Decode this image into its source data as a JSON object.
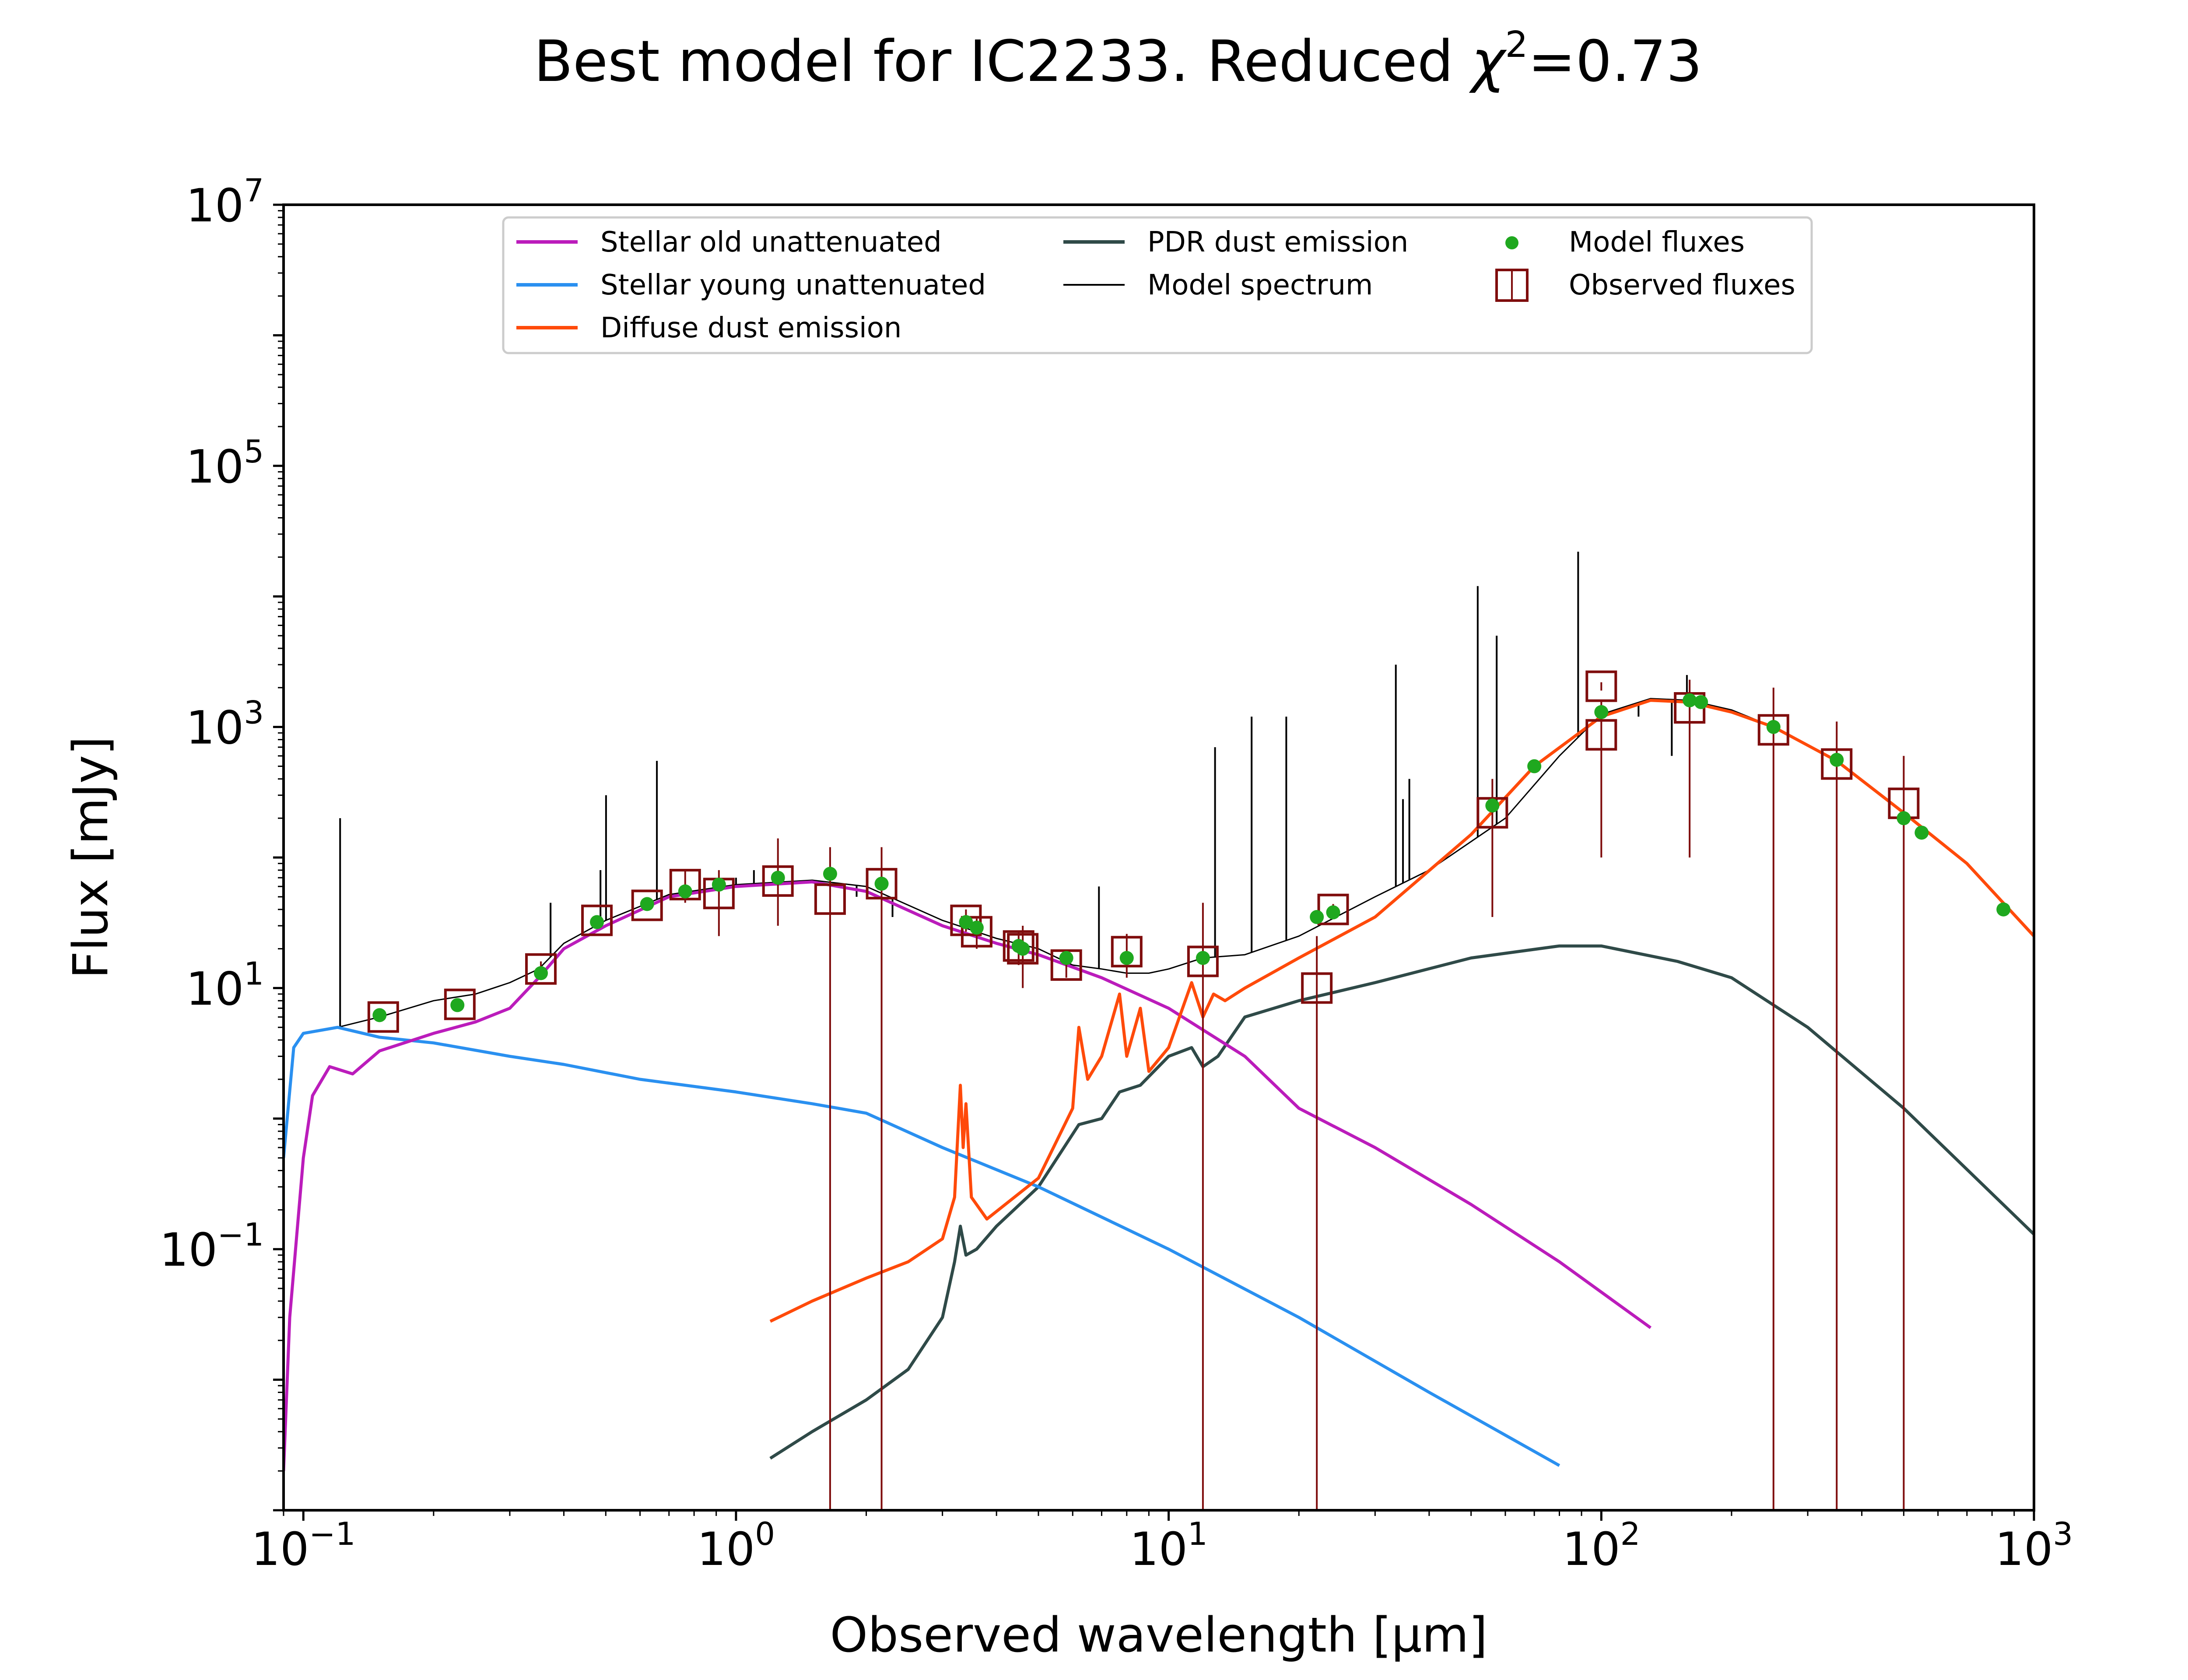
{
  "title": "Best model for IC2233. Reduced χ²=0.73",
  "title_parts": {
    "prefix": "Best model for IC2233. Reduced ",
    "chi": "χ",
    "sup": "2",
    "suffix": "=0.73"
  },
  "colors": {
    "stellar_old": "#bb1cbb",
    "stellar_young": "#2a90f0",
    "diffuse_dust": "#ff4a0a",
    "pdr_dust": "#2f4a48",
    "model_spectrum": "#000000",
    "model_fluxes": "#1fa81f",
    "observed": "#7f0d0d"
  },
  "chart_data": {
    "type": "line",
    "title": "Best model for IC2233. Reduced χ²=0.73",
    "xlabel": "Observed wavelength [μm]",
    "ylabel": "Flux [mJy]",
    "xscale": "log",
    "yscale": "log",
    "xlim": [
      0.09,
      1000
    ],
    "ylim": [
      0.001,
      10000000
    ],
    "xticks": [
      {
        "value": 0.1,
        "base": "10",
        "exp": "−1"
      },
      {
        "value": 1,
        "base": "10",
        "exp": "0"
      },
      {
        "value": 10,
        "base": "10",
        "exp": "1"
      },
      {
        "value": 100,
        "base": "10",
        "exp": "2"
      },
      {
        "value": 1000,
        "base": "10",
        "exp": "3"
      }
    ],
    "yticks": [
      {
        "value": 0.1,
        "base": "10",
        "exp": "−1"
      },
      {
        "value": 10,
        "base": "10",
        "exp": "1"
      },
      {
        "value": 1000,
        "base": "10",
        "exp": "3"
      },
      {
        "value": 100000,
        "base": "10",
        "exp": "5"
      },
      {
        "value": 10000000,
        "base": "10",
        "exp": "7"
      }
    ],
    "legend_position": "top-center",
    "series": [
      {
        "name": "Stellar old unattenuated",
        "key": "stellar_old",
        "kind": "line",
        "points": [
          [
            0.09,
            0.002
          ],
          [
            0.093,
            0.03
          ],
          [
            0.1,
            0.5
          ],
          [
            0.105,
            1.5
          ],
          [
            0.115,
            2.5
          ],
          [
            0.13,
            2.2
          ],
          [
            0.15,
            3.3
          ],
          [
            0.2,
            4.5
          ],
          [
            0.25,
            5.5
          ],
          [
            0.3,
            7
          ],
          [
            0.35,
            12
          ],
          [
            0.4,
            20
          ],
          [
            0.5,
            30
          ],
          [
            0.7,
            50
          ],
          [
            1.0,
            60
          ],
          [
            1.5,
            65
          ],
          [
            2.0,
            55
          ],
          [
            3.0,
            30
          ],
          [
            4.0,
            22
          ],
          [
            5.0,
            18
          ],
          [
            7.0,
            12
          ],
          [
            10.0,
            7
          ],
          [
            15.0,
            3
          ],
          [
            20.0,
            1.2
          ],
          [
            30.0,
            0.6
          ],
          [
            50.0,
            0.22
          ],
          [
            80.0,
            0.08
          ],
          [
            130.0,
            0.025
          ]
        ]
      },
      {
        "name": "Stellar young unattenuated",
        "key": "stellar_young",
        "kind": "line",
        "points": [
          [
            0.09,
            0.5
          ],
          [
            0.095,
            3.5
          ],
          [
            0.1,
            4.5
          ],
          [
            0.12,
            5
          ],
          [
            0.15,
            4.2
          ],
          [
            0.2,
            3.8
          ],
          [
            0.3,
            3.0
          ],
          [
            0.4,
            2.6
          ],
          [
            0.6,
            2.0
          ],
          [
            1.0,
            1.6
          ],
          [
            1.5,
            1.3
          ],
          [
            2.0,
            1.1
          ],
          [
            3.0,
            0.6
          ],
          [
            5.0,
            0.3
          ],
          [
            10.0,
            0.1
          ],
          [
            20.0,
            0.03
          ],
          [
            40.0,
            0.008
          ],
          [
            80.0,
            0.0022
          ]
        ]
      },
      {
        "name": "Diffuse dust emission",
        "key": "diffuse_dust",
        "kind": "line",
        "points": [
          [
            1.2,
            0.028
          ],
          [
            1.5,
            0.04
          ],
          [
            2.0,
            0.06
          ],
          [
            2.5,
            0.08
          ],
          [
            3.0,
            0.12
          ],
          [
            3.2,
            0.25
          ],
          [
            3.3,
            1.8
          ],
          [
            3.35,
            0.6
          ],
          [
            3.4,
            1.3
          ],
          [
            3.5,
            0.25
          ],
          [
            3.8,
            0.17
          ],
          [
            5.0,
            0.35
          ],
          [
            6.0,
            1.2
          ],
          [
            6.2,
            5
          ],
          [
            6.5,
            2.0
          ],
          [
            7.0,
            3
          ],
          [
            7.7,
            9
          ],
          [
            8.0,
            3
          ],
          [
            8.6,
            7
          ],
          [
            9.0,
            2.3
          ],
          [
            10.0,
            3.5
          ],
          [
            11.3,
            11
          ],
          [
            12.0,
            6
          ],
          [
            12.7,
            9
          ],
          [
            13.5,
            8
          ],
          [
            15.0,
            10
          ],
          [
            20.0,
            17
          ],
          [
            30.0,
            35
          ],
          [
            50.0,
            150
          ],
          [
            70.0,
            500
          ],
          [
            100.0,
            1200
          ],
          [
            130.0,
            1600
          ],
          [
            160.0,
            1550
          ],
          [
            200.0,
            1300
          ],
          [
            250.0,
            1000
          ],
          [
            350.0,
            550
          ],
          [
            500.0,
            220
          ],
          [
            700.0,
            90
          ],
          [
            1000.0,
            25
          ]
        ]
      },
      {
        "name": "PDR dust emission",
        "key": "pdr_dust",
        "kind": "line",
        "points": [
          [
            1.2,
            0.0025
          ],
          [
            1.5,
            0.004
          ],
          [
            2.0,
            0.007
          ],
          [
            2.5,
            0.012
          ],
          [
            3.0,
            0.03
          ],
          [
            3.2,
            0.08
          ],
          [
            3.3,
            0.15
          ],
          [
            3.4,
            0.09
          ],
          [
            3.6,
            0.1
          ],
          [
            4.0,
            0.15
          ],
          [
            5.0,
            0.3
          ],
          [
            6.2,
            0.9
          ],
          [
            7.0,
            1
          ],
          [
            7.7,
            1.6
          ],
          [
            8.6,
            1.8
          ],
          [
            10.0,
            3
          ],
          [
            11.3,
            3.5
          ],
          [
            12.0,
            2.5
          ],
          [
            13.0,
            3
          ],
          [
            15.0,
            6
          ],
          [
            20.0,
            8
          ],
          [
            30.0,
            11
          ],
          [
            50.0,
            17
          ],
          [
            80.0,
            21
          ],
          [
            100.0,
            21
          ],
          [
            150.0,
            16
          ],
          [
            200.0,
            12
          ],
          [
            300.0,
            5
          ],
          [
            500.0,
            1.2
          ],
          [
            1000.0,
            0.13
          ]
        ]
      },
      {
        "name": "Model spectrum",
        "key": "model_spectrum",
        "kind": "line",
        "points": [
          [
            0.09,
            0.5
          ],
          [
            0.095,
            3.5
          ],
          [
            0.1,
            4.5
          ],
          [
            0.12,
            5
          ],
          [
            0.15,
            6
          ],
          [
            0.2,
            8
          ],
          [
            0.25,
            9
          ],
          [
            0.3,
            11
          ],
          [
            0.35,
            14
          ],
          [
            0.4,
            22
          ],
          [
            0.5,
            33
          ],
          [
            0.7,
            52
          ],
          [
            1.0,
            62
          ],
          [
            1.5,
            67
          ],
          [
            2.0,
            60
          ],
          [
            3.0,
            33
          ],
          [
            4.0,
            24
          ],
          [
            5.0,
            20
          ],
          [
            6.0,
            15
          ],
          [
            7.0,
            14
          ],
          [
            8.0,
            13
          ],
          [
            9.0,
            13
          ],
          [
            10.0,
            14
          ],
          [
            12.0,
            17
          ],
          [
            15.0,
            18
          ],
          [
            20.0,
            25
          ],
          [
            30.0,
            50
          ],
          [
            40.0,
            80
          ],
          [
            60.0,
            200
          ],
          [
            80.0,
            600
          ],
          [
            100.0,
            1250
          ],
          [
            130.0,
            1650
          ],
          [
            160.0,
            1600
          ],
          [
            200.0,
            1350
          ],
          [
            250.0,
            1000
          ],
          [
            350.0,
            550
          ],
          [
            500.0,
            220
          ],
          [
            700.0,
            90
          ],
          [
            1000.0,
            25
          ]
        ],
        "emission_lines": [
          [
            0.1216,
            200
          ],
          [
            0.3727,
            45
          ],
          [
            0.4861,
            80
          ],
          [
            0.5007,
            300
          ],
          [
            0.6563,
            550
          ],
          [
            1.0,
            70
          ],
          [
            1.1,
            80
          ],
          [
            1.9,
            50
          ],
          [
            2.3,
            35
          ],
          [
            6.9,
            60
          ],
          [
            12.8,
            700
          ],
          [
            15.55,
            1200
          ],
          [
            18.7,
            1200
          ],
          [
            33.5,
            3000
          ],
          [
            34.8,
            280
          ],
          [
            36.0,
            400
          ],
          [
            51.8,
            12000
          ],
          [
            57.3,
            5000
          ],
          [
            88.4,
            22000
          ],
          [
            121.9,
            1200
          ],
          [
            145.5,
            600
          ],
          [
            157.7,
            2500
          ]
        ]
      },
      {
        "name": "Model fluxes",
        "key": "model_fluxes",
        "kind": "scatter",
        "points": [
          [
            0.15,
            6.2
          ],
          [
            0.227,
            7.4
          ],
          [
            0.354,
            13
          ],
          [
            0.477,
            32
          ],
          [
            0.623,
            44
          ],
          [
            0.763,
            55
          ],
          [
            0.913,
            62
          ],
          [
            1.25,
            70
          ],
          [
            1.65,
            75
          ],
          [
            2.17,
            63
          ],
          [
            3.4,
            32
          ],
          [
            3.6,
            29
          ],
          [
            4.5,
            21
          ],
          [
            4.6,
            20
          ],
          [
            5.8,
            17
          ],
          [
            8.0,
            17
          ],
          [
            12.0,
            17
          ],
          [
            22.0,
            35
          ],
          [
            24.0,
            38
          ],
          [
            56.0,
            250
          ],
          [
            70.0,
            500
          ],
          [
            100.0,
            1300
          ],
          [
            160.0,
            1600
          ],
          [
            170.0,
            1550
          ],
          [
            250.0,
            1000
          ],
          [
            350.0,
            560
          ],
          [
            500.0,
            200
          ],
          [
            550.0,
            155
          ],
          [
            850.0,
            40
          ]
        ]
      },
      {
        "name": "Observed fluxes",
        "key": "observed",
        "kind": "errorbar",
        "points": [
          {
            "x": 0.153,
            "y": 6,
            "lo": 5.7,
            "hi": 6.3
          },
          {
            "x": 0.23,
            "y": 7.5,
            "lo": 7,
            "hi": 8
          },
          {
            "x": 0.354,
            "y": 14,
            "lo": 12,
            "hi": 16
          },
          {
            "x": 0.477,
            "y": 33,
            "lo": 31,
            "hi": 35
          },
          {
            "x": 0.623,
            "y": 43,
            "lo": 41,
            "hi": 45
          },
          {
            "x": 0.763,
            "y": 62,
            "lo": 45,
            "hi": 80
          },
          {
            "x": 0.913,
            "y": 53,
            "lo": 25,
            "hi": 80
          },
          {
            "x": 1.25,
            "y": 66,
            "lo": 30,
            "hi": 140
          },
          {
            "x": 1.65,
            "y": 48,
            "lo": 0.001,
            "hi": 120
          },
          {
            "x": 2.17,
            "y": 63,
            "lo": 0.001,
            "hi": 120
          },
          {
            "x": 3.4,
            "y": 33,
            "lo": 27,
            "hi": 40
          },
          {
            "x": 3.6,
            "y": 27,
            "lo": 20,
            "hi": 34
          },
          {
            "x": 4.5,
            "y": 21,
            "lo": 15,
            "hi": 27
          },
          {
            "x": 4.6,
            "y": 20,
            "lo": 10,
            "hi": 30
          },
          {
            "x": 5.8,
            "y": 15,
            "lo": 12,
            "hi": 18
          },
          {
            "x": 8.0,
            "y": 19,
            "lo": 12,
            "hi": 26
          },
          {
            "x": 12.0,
            "y": 16,
            "lo": 0.001,
            "hi": 45
          },
          {
            "x": 22.0,
            "y": 10,
            "lo": 0.001,
            "hi": 25
          },
          {
            "x": 24.0,
            "y": 40,
            "lo": 36,
            "hi": 44
          },
          {
            "x": 56.0,
            "y": 220,
            "lo": 35,
            "hi": 400
          },
          {
            "x": 100.0,
            "y": 2050,
            "lo": 1900,
            "hi": 2200
          },
          {
            "x": 100.0,
            "y": 870,
            "lo": 100,
            "hi": 1600
          },
          {
            "x": 160.0,
            "y": 1400,
            "lo": 100,
            "hi": 2300
          },
          {
            "x": 250.0,
            "y": 950,
            "lo": 0.001,
            "hi": 2000
          },
          {
            "x": 350.0,
            "y": 520,
            "lo": 0.001,
            "hi": 1100
          },
          {
            "x": 500.0,
            "y": 260,
            "lo": 0.001,
            "hi": 600
          }
        ]
      }
    ]
  }
}
